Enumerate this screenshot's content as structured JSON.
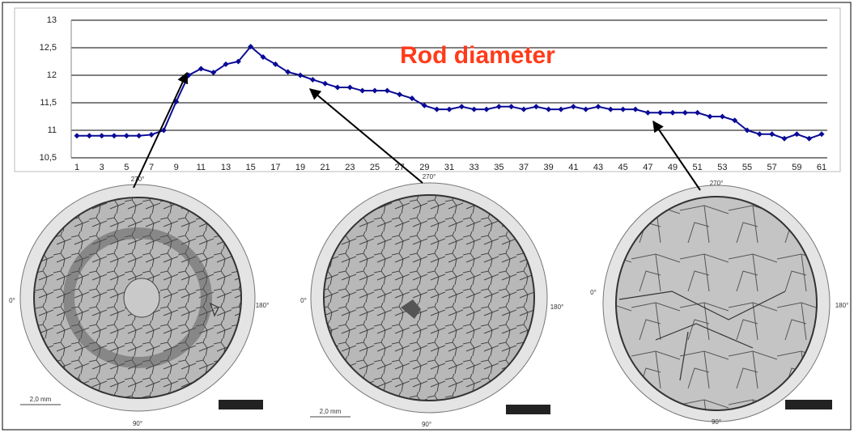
{
  "chart_data": {
    "type": "line",
    "title": "Rod diameter",
    "categories": [
      1,
      null,
      3,
      null,
      5,
      null,
      7,
      null,
      9,
      null,
      11,
      null,
      13,
      null,
      15,
      null,
      17,
      null,
      19,
      null,
      21,
      null,
      23,
      null,
      25,
      null,
      27,
      null,
      29,
      null,
      31,
      null,
      33,
      null,
      35,
      null,
      37,
      null,
      39,
      null,
      41,
      null,
      43,
      null,
      45,
      null,
      47,
      null,
      49,
      null,
      51,
      null,
      53,
      null,
      55,
      null,
      57,
      null,
      59,
      null,
      61
    ],
    "values": [
      10.9,
      10.9,
      10.9,
      10.9,
      10.9,
      10.9,
      10.92,
      11.0,
      11.52,
      12.0,
      12.12,
      12.05,
      12.2,
      12.25,
      12.52,
      12.33,
      12.2,
      12.06,
      12.0,
      11.92,
      11.85,
      11.78,
      11.78,
      11.72,
      11.72,
      11.72,
      11.65,
      11.58,
      11.45,
      11.38,
      11.38,
      11.43,
      11.38,
      11.38,
      11.43,
      11.43,
      11.38,
      11.43,
      11.38,
      11.38,
      11.43,
      11.38,
      11.43,
      11.38,
      11.38,
      11.38,
      11.32,
      11.32,
      11.32,
      11.32,
      11.32,
      11.25,
      11.25,
      11.18,
      11.0,
      10.93,
      10.93,
      10.85,
      10.93,
      10.85,
      10.93
    ],
    "color": "#0a0a96",
    "ylim": [
      10.5,
      13
    ],
    "yticks": [
      {
        "value": 10.5,
        "label": "10,5"
      },
      11,
      {
        "value": 11.5,
        "label": "11,5"
      },
      12,
      {
        "value": 12.5,
        "label": "12,5"
      },
      13
    ],
    "grid": true
  },
  "images": [
    {
      "top": "270°",
      "left": "0°",
      "right": "180°",
      "bottom": "90°",
      "scale": "2,0 mm"
    },
    {
      "top": "270°",
      "left": "0°",
      "right": "180°",
      "bottom": "90°",
      "scale": "2,0 mm"
    },
    {
      "top": "270°",
      "left": "0°",
      "right": "180°",
      "bottom": "90°"
    }
  ]
}
